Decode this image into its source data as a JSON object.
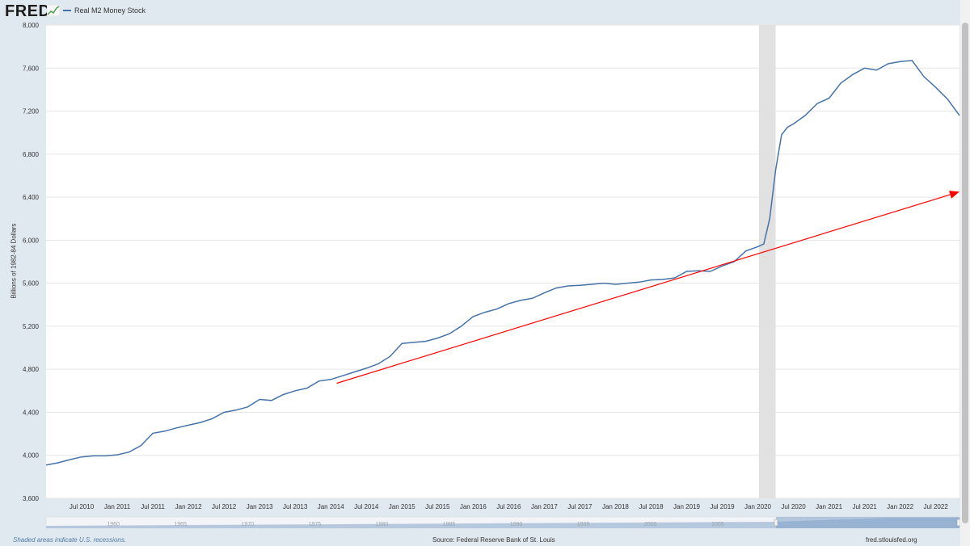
{
  "header": {
    "logo_text": "FRED",
    "legend_label": "Real M2 Money Stock",
    "series_color": "#4572a7"
  },
  "footer": {
    "left": "Shaded areas indicate U.S. recessions.",
    "source": "Source: Federal Reserve Bank of St. Louis",
    "site": "fred.stlouisfed.org"
  },
  "chart_data": {
    "type": "line",
    "ylabel": "Billions of 1982-84 Dollars",
    "ylim": [
      3600,
      8000
    ],
    "yticks": [
      "3,600",
      "4,000",
      "4,400",
      "4,800",
      "5,200",
      "5,600",
      "6,000",
      "6,400",
      "6,800",
      "7,200",
      "7,600",
      "8,000"
    ],
    "ytick_values": [
      3600,
      4000,
      4400,
      4800,
      5200,
      5600,
      6000,
      6400,
      6800,
      7200,
      7600,
      8000
    ],
    "xlim": [
      "2010-01",
      "2022-11"
    ],
    "xticks": [
      "Jul 2010",
      "Jan 2011",
      "Jul 2011",
      "Jan 2012",
      "Jul 2012",
      "Jan 2013",
      "Jul 2013",
      "Jan 2014",
      "Jul 2014",
      "Jan 2015",
      "Jul 2015",
      "Jan 2016",
      "Jul 2016",
      "Jan 2017",
      "Jul 2017",
      "Jan 2018",
      "Jul 2018",
      "Jan 2019",
      "Jul 2019",
      "Jan 2020",
      "Jul 2020",
      "Jan 2021",
      "Jul 2021",
      "Jan 2022",
      "Jul 2022"
    ],
    "xtick_dates": [
      "2010-07",
      "2011-01",
      "2011-07",
      "2012-01",
      "2012-07",
      "2013-01",
      "2013-07",
      "2014-01",
      "2014-07",
      "2015-01",
      "2015-07",
      "2016-01",
      "2016-07",
      "2017-01",
      "2017-07",
      "2018-01",
      "2018-07",
      "2019-01",
      "2019-07",
      "2020-01",
      "2020-07",
      "2021-01",
      "2021-07",
      "2022-01",
      "2022-07"
    ],
    "grid": "horizontal",
    "recession": {
      "start": "2020-02",
      "end": "2020-04"
    },
    "series": [
      {
        "name": "Real M2 Money Stock",
        "color": "#4572a7",
        "x": [
          "2010-01",
          "2010-03",
          "2010-05",
          "2010-07",
          "2010-09",
          "2010-11",
          "2011-01",
          "2011-03",
          "2011-05",
          "2011-07",
          "2011-09",
          "2011-11",
          "2012-01",
          "2012-03",
          "2012-05",
          "2012-07",
          "2012-09",
          "2012-11",
          "2013-01",
          "2013-03",
          "2013-05",
          "2013-07",
          "2013-09",
          "2013-11",
          "2014-01",
          "2014-03",
          "2014-05",
          "2014-07",
          "2014-09",
          "2014-11",
          "2015-01",
          "2015-03",
          "2015-05",
          "2015-07",
          "2015-09",
          "2015-11",
          "2016-01",
          "2016-03",
          "2016-05",
          "2016-07",
          "2016-09",
          "2016-11",
          "2017-01",
          "2017-03",
          "2017-05",
          "2017-07",
          "2017-09",
          "2017-11",
          "2018-01",
          "2018-03",
          "2018-05",
          "2018-07",
          "2018-09",
          "2018-11",
          "2019-01",
          "2019-03",
          "2019-05",
          "2019-07",
          "2019-09",
          "2019-11",
          "2020-01",
          "2020-02",
          "2020-03",
          "2020-04",
          "2020-05",
          "2020-06",
          "2020-07",
          "2020-09",
          "2020-11",
          "2021-01",
          "2021-03",
          "2021-05",
          "2021-07",
          "2021-09",
          "2021-11",
          "2022-01",
          "2022-03",
          "2022-05",
          "2022-07",
          "2022-09",
          "2022-11"
        ],
        "y": [
          3910,
          3930,
          3960,
          3985,
          3995,
          3995,
          4005,
          4030,
          4090,
          4205,
          4225,
          4255,
          4280,
          4305,
          4340,
          4400,
          4420,
          4450,
          4520,
          4510,
          4565,
          4600,
          4625,
          4690,
          4705,
          4740,
          4775,
          4810,
          4850,
          4920,
          5040,
          5050,
          5060,
          5090,
          5130,
          5200,
          5290,
          5330,
          5360,
          5410,
          5440,
          5460,
          5510,
          5555,
          5575,
          5580,
          5590,
          5600,
          5590,
          5600,
          5610,
          5630,
          5635,
          5650,
          5710,
          5715,
          5710,
          5760,
          5800,
          5900,
          5940,
          5965,
          6200,
          6650,
          6980,
          7050,
          7080,
          7160,
          7270,
          7320,
          7460,
          7540,
          7600,
          7580,
          7640,
          7660,
          7670,
          7520,
          7420,
          7310,
          7160
        ]
      }
    ],
    "annotation_arrow": {
      "color": "#ff0000",
      "from": {
        "x": "2014-02",
        "y": 4670
      },
      "to": {
        "x": "2022-11",
        "y": 6450
      }
    },
    "navigator": {
      "ticks": [
        "1960",
        "1965",
        "1970",
        "1975",
        "1980",
        "1985",
        "1990",
        "1995",
        "2000",
        "2005"
      ]
    }
  }
}
